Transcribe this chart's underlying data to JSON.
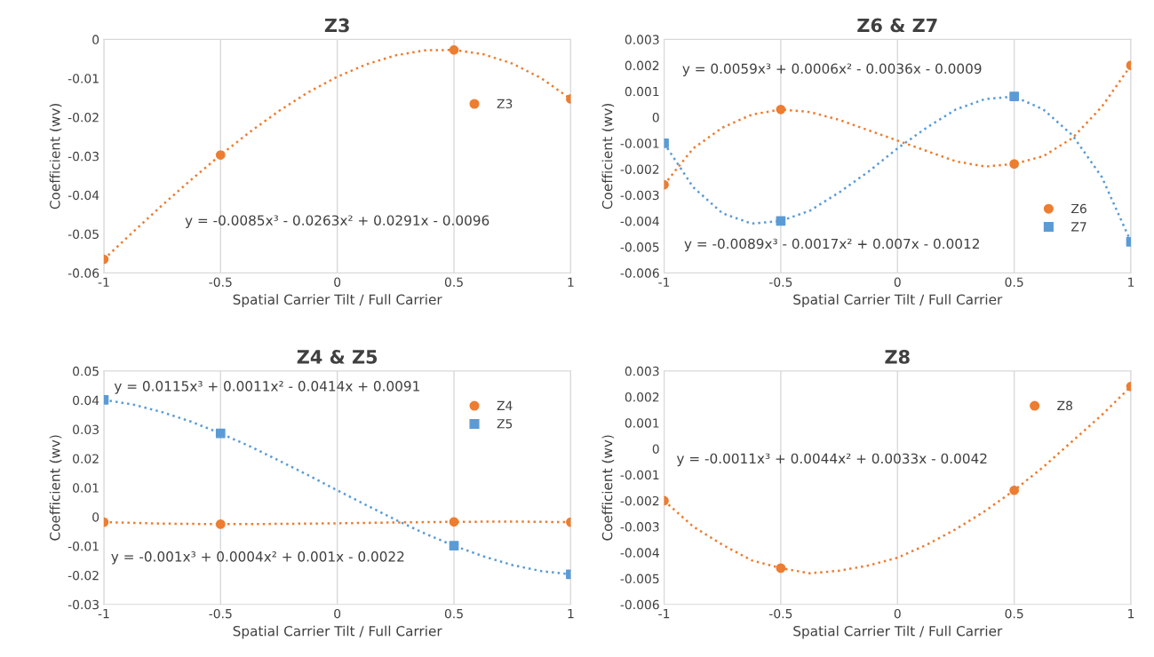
{
  "chart_data": [
    {
      "type": "scatter",
      "title": "Z3",
      "xlabel": "Spatial Carrier Tilt / Full Carrier",
      "ylabel": "Coefficient (wv)",
      "xlim": [
        -1,
        1
      ],
      "xticks": [
        -1,
        -0.5,
        0,
        0.5,
        1
      ],
      "ylim": [
        -0.06,
        0
      ],
      "yticks": [
        -0.06,
        -0.05,
        -0.04,
        -0.03,
        -0.02,
        -0.01,
        0
      ],
      "grid": "x",
      "legend": "right",
      "annotations": [
        "y = -0.0085x³ - 0.0263x² + 0.0291x - 0.0096"
      ],
      "series": [
        {
          "name": "Z3",
          "marker": "circle",
          "color": "#ed7d31",
          "x": [
            -1,
            -0.5,
            0.5,
            1
          ],
          "values": [
            -0.0565,
            -0.0297,
            -0.0027,
            -0.0153
          ]
        },
        {
          "type": "line",
          "line_style": "dotted",
          "color": "#ed7d31",
          "x": [
            -1,
            -0.875,
            -0.75,
            -0.625,
            -0.5,
            -0.375,
            -0.25,
            -0.125,
            0,
            0.125,
            0.25,
            0.375,
            0.5,
            0.625,
            0.75,
            0.875,
            1
          ],
          "values": [
            -0.0565,
            -0.0495,
            -0.0426,
            -0.036,
            -0.0297,
            -0.0238,
            -0.0184,
            -0.0136,
            -0.0096,
            -0.0064,
            -0.0041,
            -0.0028,
            -0.0027,
            -0.0038,
            -0.0062,
            -0.01,
            -0.0153
          ]
        }
      ]
    },
    {
      "type": "scatter",
      "title": "Z6 & Z7",
      "xlabel": "Spatial Carrier Tilt / Full Carrier",
      "ylabel": "Coefficient (wv)",
      "xlim": [
        -1,
        1
      ],
      "xticks": [
        -1,
        -0.5,
        0,
        0.5,
        1
      ],
      "ylim": [
        -0.006,
        0.003
      ],
      "yticks": [
        -0.006,
        -0.005,
        -0.004,
        -0.003,
        -0.002,
        -0.001,
        0,
        0.001,
        0.002,
        0.003
      ],
      "grid": "x",
      "legend": "bottom right",
      "annotations": [
        "y = 0.0059x³ + 0.0006x² - 0.0036x - 0.0009",
        "y = -0.0089x³ - 0.0017x² + 0.007x - 0.0012"
      ],
      "series": [
        {
          "name": "Z6",
          "marker": "circle",
          "color": "#ed7d31",
          "x": [
            -1,
            -0.5,
            0.5,
            1
          ],
          "values": [
            -0.0026,
            0.0003,
            -0.0018,
            0.002
          ]
        },
        {
          "name": "Z7",
          "marker": "square",
          "color": "#5b9bd5",
          "x": [
            -1,
            -0.5,
            0.5,
            1
          ],
          "values": [
            -0.001,
            -0.004,
            0.0008,
            -0.0048
          ]
        },
        {
          "type": "line",
          "line_style": "dotted",
          "color": "#ed7d31",
          "x": [
            -1,
            -0.875,
            -0.75,
            -0.625,
            -0.5,
            -0.375,
            -0.25,
            -0.125,
            0,
            0.125,
            0.25,
            0.375,
            0.5,
            0.625,
            0.75,
            0.875,
            1
          ],
          "values": [
            -0.0026,
            -0.0012,
            -0.0004,
            0.0001,
            0.0003,
            0.0002,
            -0.0001,
            -0.0005,
            -0.0009,
            -0.0013,
            -0.0017,
            -0.0019,
            -0.0018,
            -0.0015,
            -0.0008,
            0.0004,
            0.002
          ]
        },
        {
          "type": "line",
          "line_style": "dotted",
          "color": "#5b9bd5",
          "x": [
            -1,
            -0.875,
            -0.75,
            -0.625,
            -0.5,
            -0.375,
            -0.25,
            -0.125,
            0,
            0.125,
            0.25,
            0.375,
            0.5,
            0.625,
            0.75,
            0.875,
            1
          ],
          "values": [
            -0.001,
            -0.0027,
            -0.0037,
            -0.0041,
            -0.004,
            -0.0036,
            -0.0029,
            -0.0021,
            -0.0012,
            -0.0004,
            0.0003,
            0.0007,
            0.0008,
            0.0003,
            -0.0007,
            -0.0023,
            -0.0048
          ]
        }
      ]
    },
    {
      "type": "scatter",
      "title": "Z4 & Z5",
      "xlabel": "Spatial Carrier Tilt / Full Carrier",
      "ylabel": "Coefficient (wv)",
      "xlim": [
        -1,
        1
      ],
      "xticks": [
        -1,
        -0.5,
        0,
        0.5,
        1
      ],
      "ylim": [
        -0.03,
        0.05
      ],
      "yticks": [
        -0.03,
        -0.02,
        -0.01,
        0,
        0.01,
        0.02,
        0.03,
        0.04,
        0.05
      ],
      "grid": "x",
      "legend": "top right",
      "annotations": [
        "y = 0.0115x³ + 0.0011x² - 0.0414x + 0.0091",
        "y = -0.001x³ + 0.0004x² + 0.001x - 0.0022"
      ],
      "series": [
        {
          "name": "Z4",
          "marker": "circle",
          "color": "#ed7d31",
          "x": [
            -1,
            -0.5,
            0.5,
            1
          ],
          "values": [
            -0.0018,
            -0.0025,
            -0.0017,
            -0.0018
          ]
        },
        {
          "name": "Z5",
          "marker": "square",
          "color": "#5b9bd5",
          "x": [
            -1,
            -0.5,
            0.5,
            1
          ],
          "values": [
            0.0401,
            0.0286,
            -0.0099,
            -0.0197
          ]
        },
        {
          "type": "line",
          "line_style": "dotted",
          "color": "#ed7d31",
          "x": [
            -1,
            -0.75,
            -0.5,
            -0.25,
            0,
            0.25,
            0.5,
            0.75,
            1
          ],
          "values": [
            -0.0018,
            -0.0023,
            -0.0025,
            -0.0024,
            -0.0022,
            -0.0019,
            -0.0017,
            -0.0016,
            -0.0018
          ]
        },
        {
          "type": "line",
          "line_style": "dotted",
          "color": "#5b9bd5",
          "x": [
            -1,
            -0.875,
            -0.75,
            -0.625,
            -0.5,
            -0.375,
            -0.25,
            -0.125,
            0,
            0.125,
            0.25,
            0.375,
            0.5,
            0.625,
            0.75,
            0.875,
            1
          ],
          "values": [
            0.0401,
            0.0385,
            0.0359,
            0.0326,
            0.0286,
            0.0242,
            0.0193,
            0.0143,
            0.0091,
            0.004,
            -0.001,
            -0.0057,
            -0.0099,
            -0.0135,
            -0.0165,
            -0.0186,
            -0.0197
          ]
        }
      ]
    },
    {
      "type": "scatter",
      "title": "Z8",
      "xlabel": "Spatial Carrier Tilt / Full Carrier",
      "ylabel": "Coefficient (wv)",
      "xlim": [
        -1,
        1
      ],
      "xticks": [
        -1,
        -0.5,
        0,
        0.5,
        1
      ],
      "ylim": [
        -0.006,
        0.003
      ],
      "yticks": [
        -0.006,
        -0.005,
        -0.004,
        -0.003,
        -0.002,
        -0.001,
        0,
        0.001,
        0.002,
        0.003
      ],
      "grid": "x",
      "legend": "top right",
      "annotations": [
        "y = -0.0011x³ + 0.0044x² + 0.0033x - 0.0042"
      ],
      "series": [
        {
          "name": "Z8",
          "marker": "circle",
          "color": "#ed7d31",
          "x": [
            -1,
            -0.5,
            0.5,
            1
          ],
          "values": [
            -0.002,
            -0.0046,
            -0.0016,
            0.0024
          ]
        },
        {
          "type": "line",
          "line_style": "dotted",
          "color": "#ed7d31",
          "x": [
            -1,
            -0.875,
            -0.75,
            -0.625,
            -0.5,
            -0.375,
            -0.25,
            -0.125,
            0,
            0.125,
            0.25,
            0.375,
            0.5,
            0.625,
            0.75,
            0.875,
            1
          ],
          "values": [
            -0.002,
            -0.003,
            -0.0037,
            -0.0043,
            -0.0046,
            -0.0048,
            -0.0047,
            -0.0045,
            -0.0042,
            -0.0037,
            -0.0031,
            -0.0024,
            -0.0016,
            -0.0007,
            0.0003,
            0.0013,
            0.0024
          ]
        }
      ]
    }
  ]
}
